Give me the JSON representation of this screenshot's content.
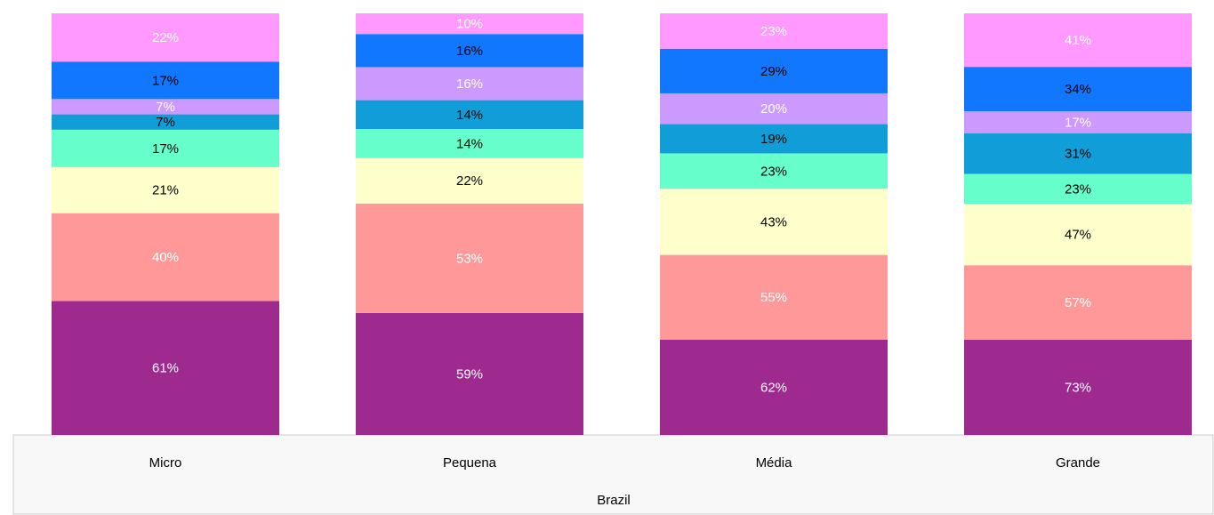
{
  "chart_data": {
    "type": "stacked_bar_100",
    "categories": [
      "Micro",
      "Pequena",
      "Média",
      "Grande"
    ],
    "group_label": "Brazil",
    "series": [
      {
        "color": "#9e2a8f",
        "label_color": "#ffffff",
        "values": [
          61,
          59,
          62,
          73
        ],
        "value_labels": [
          "61%",
          "59%",
          "62%",
          "73%"
        ]
      },
      {
        "color": "#ff9999",
        "label_color": "#ffffff",
        "values": [
          40,
          53,
          55,
          57
        ],
        "value_labels": [
          "40%",
          "53%",
          "55%",
          "57%"
        ]
      },
      {
        "color": "#ffffcc",
        "label_color": "#000000",
        "values": [
          21,
          22,
          43,
          47
        ],
        "value_labels": [
          "21%",
          "22%",
          "43%",
          "47%"
        ]
      },
      {
        "color": "#66ffcc",
        "label_color": "#000000",
        "values": [
          17,
          14,
          23,
          23
        ],
        "value_labels": [
          "17%",
          "14%",
          "23%",
          "23%"
        ]
      },
      {
        "color": "#119ed8",
        "label_color": "#000000",
        "values": [
          7,
          14,
          19,
          31
        ],
        "value_labels": [
          "7%",
          "14%",
          "19%",
          "31%"
        ]
      },
      {
        "color": "#cc99ff",
        "label_color": "#ffffff",
        "values": [
          7,
          16,
          20,
          17
        ],
        "value_labels": [
          "7%",
          "16%",
          "20%",
          "17%"
        ]
      },
      {
        "color": "#1177ff",
        "label_color": "#000000",
        "values": [
          17,
          16,
          29,
          34
        ],
        "value_labels": [
          "17%",
          "16%",
          "29%",
          "34%"
        ]
      },
      {
        "color": "#ff99ff",
        "label_color": "#ffffff",
        "values": [
          22,
          10,
          23,
          41
        ],
        "value_labels": [
          "22%",
          "10%",
          "23%",
          "41%"
        ]
      }
    ]
  }
}
